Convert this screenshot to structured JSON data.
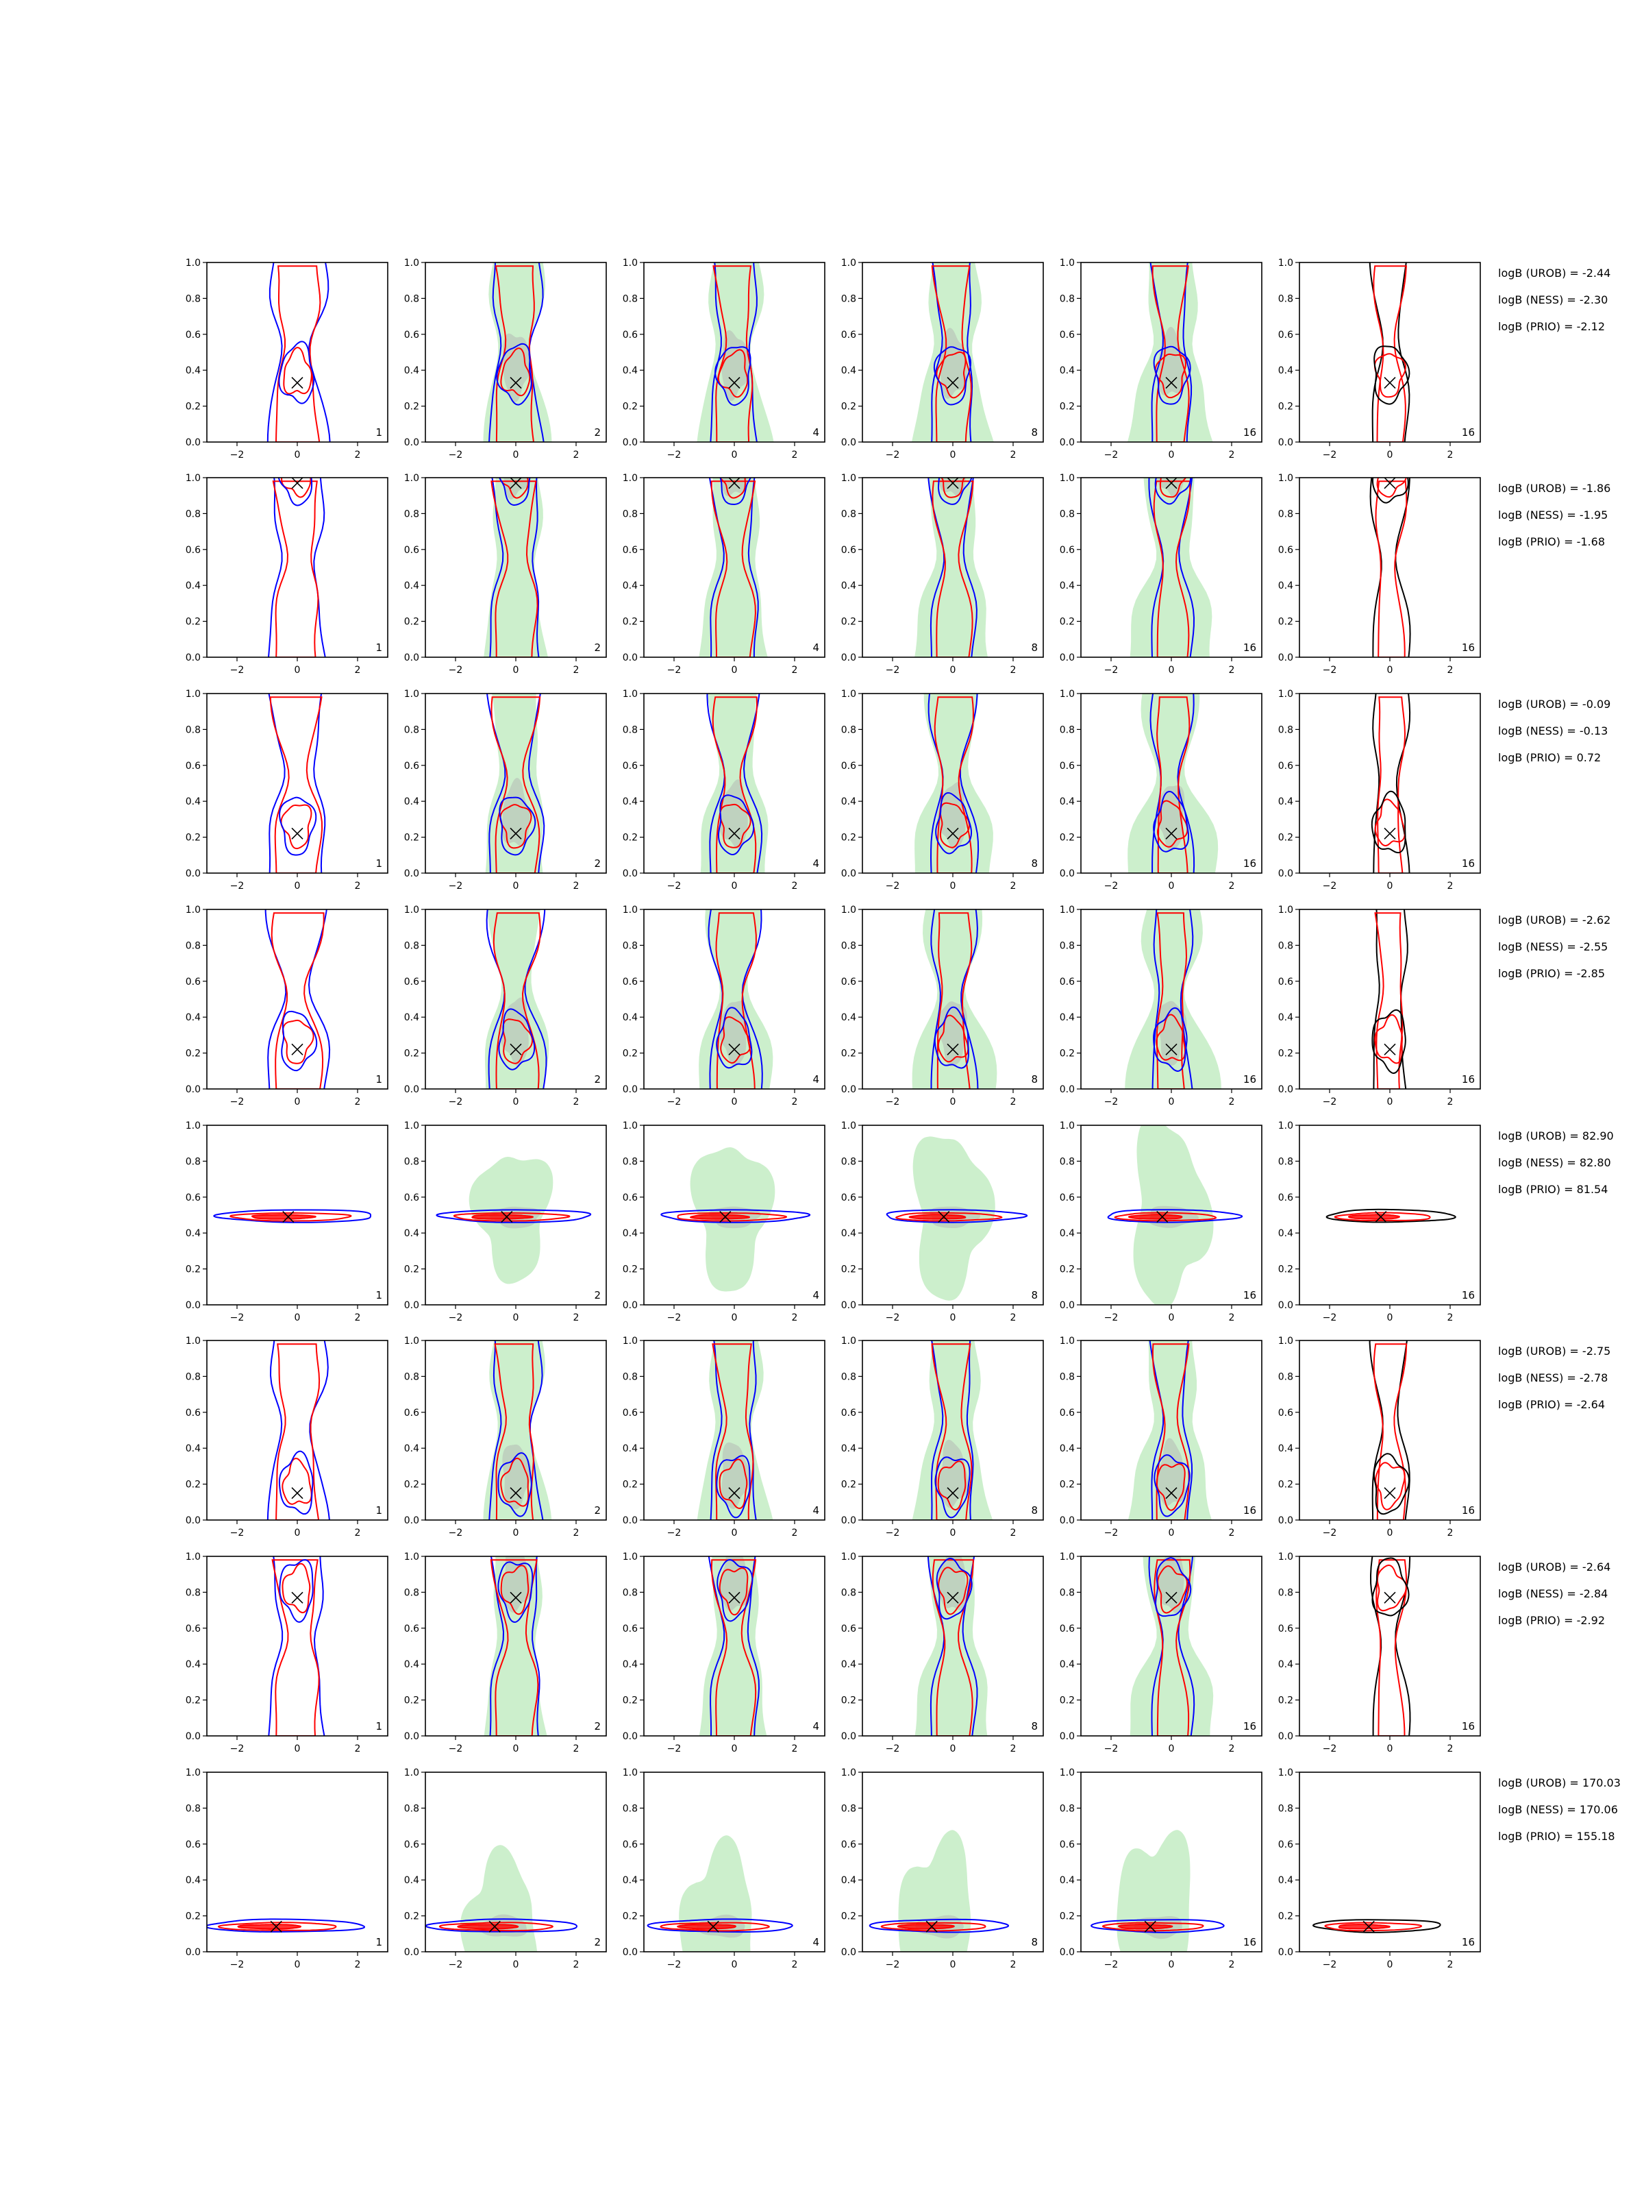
{
  "chart_data": {
    "type": "contour",
    "grid": {
      "rows": 8,
      "cols": 6
    },
    "xlim": [
      -3,
      3
    ],
    "ylim": [
      0,
      1
    ],
    "x_ticks": [
      "−2",
      "0",
      "2"
    ],
    "y_ticks": [
      "0.0",
      "0.2",
      "0.4",
      "0.6",
      "0.8",
      "1.0"
    ],
    "column_corner_labels": [
      "1",
      "2",
      "4",
      "8",
      "16",
      "16"
    ],
    "colors": {
      "blue": "#0000ff",
      "red": "#ff0000",
      "black": "#000000",
      "green_fill": "#8fdc8f",
      "gray_fill": "#b0b0b0"
    },
    "rows": [
      {
        "marker": [
          0.0,
          0.33
        ],
        "shape": "vertical",
        "logB": [
          "logB (UROB) = -2.44",
          "logB (NESS) = -2.30",
          "logB (PRIO) = -2.12"
        ]
      },
      {
        "marker": [
          0.0,
          0.97
        ],
        "shape": "vertical",
        "logB": [
          "logB (UROB) = -1.86",
          "logB (NESS) = -1.95",
          "logB (PRIO) = -1.68"
        ]
      },
      {
        "marker": [
          0.0,
          0.22
        ],
        "shape": "vertical",
        "logB": [
          "logB (UROB) = -0.09",
          "logB (NESS) = -0.13",
          "logB (PRIO) = 0.72"
        ]
      },
      {
        "marker": [
          0.0,
          0.22
        ],
        "shape": "vertical",
        "logB": [
          "logB (UROB) = -2.62",
          "logB (NESS) = -2.55",
          "logB (PRIO) = -2.85"
        ]
      },
      {
        "marker": [
          -0.3,
          0.49
        ],
        "shape": "horizontal",
        "logB": [
          "logB (UROB) = 82.90",
          "logB (NESS) = 82.80",
          "logB (PRIO) = 81.54"
        ]
      },
      {
        "marker": [
          0.0,
          0.15
        ],
        "shape": "vertical",
        "logB": [
          "logB (UROB) = -2.75",
          "logB (NESS) = -2.78",
          "logB (PRIO) = -2.64"
        ]
      },
      {
        "marker": [
          0.0,
          0.77
        ],
        "shape": "vertical",
        "logB": [
          "logB (UROB) = -2.64",
          "logB (NESS) = -2.84",
          "logB (PRIO) = -2.92"
        ]
      },
      {
        "marker": [
          -0.7,
          0.14
        ],
        "shape": "horizontal",
        "logB": [
          "logB (UROB) = 170.03",
          "logB (NESS) = 170.06",
          "logB (PRIO) = 155.18"
        ]
      }
    ]
  }
}
